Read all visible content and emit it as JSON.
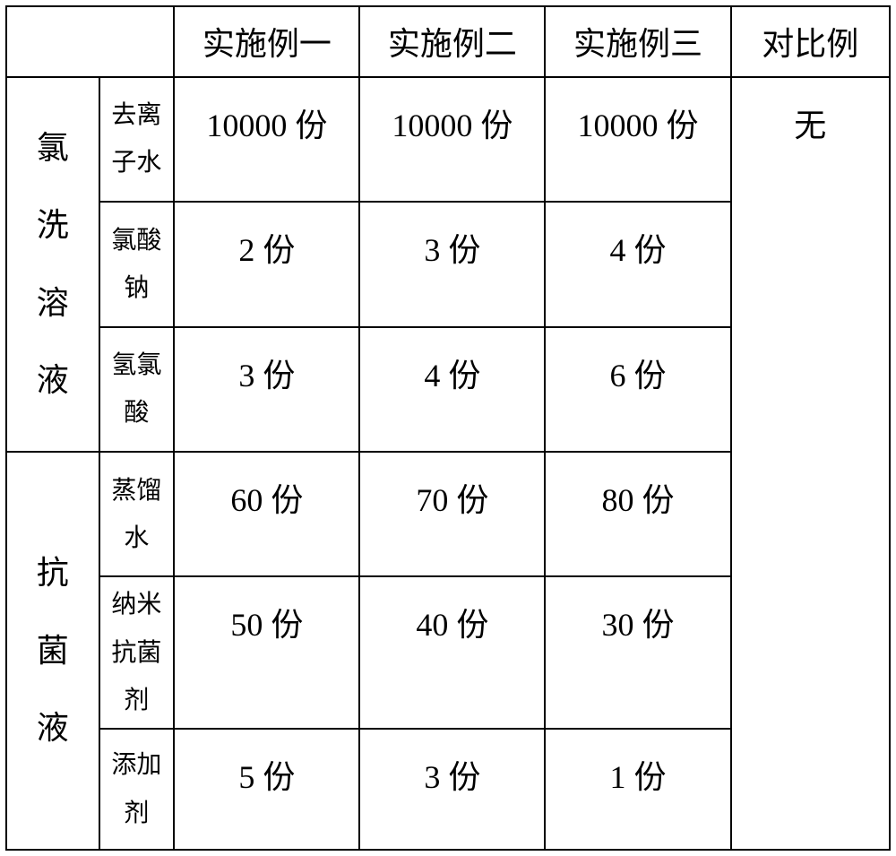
{
  "table": {
    "border_color": "#000000",
    "background_color": "#ffffff",
    "text_color": "#000000",
    "header_fontsize": 36,
    "group_label_fontsize": 36,
    "sub_label_fontsize": 28,
    "data_fontsize": 36,
    "headers": {
      "blank": "",
      "col1": "实施例一",
      "col2": "实施例二",
      "col3": "实施例三",
      "col4": "对比例"
    },
    "groups": [
      {
        "label": "氯洗溶液",
        "rows": [
          {
            "sub": "去离子水",
            "c1": "10000 份",
            "c2": "10000 份",
            "c3": "10000 份"
          },
          {
            "sub": "氯酸钠",
            "c1": "2 份",
            "c2": "3 份",
            "c3": "4 份"
          },
          {
            "sub": "氢氯酸",
            "c1": "3 份",
            "c2": "4 份",
            "c3": "6 份"
          }
        ]
      },
      {
        "label": "抗菌液",
        "rows": [
          {
            "sub": "蒸馏水",
            "c1": "60 份",
            "c2": "70 份",
            "c3": "80 份"
          },
          {
            "sub": "纳米抗菌剂",
            "c1": "50 份",
            "c2": "40 份",
            "c3": "30 份"
          },
          {
            "sub": "添加剂",
            "c1": "5 份",
            "c2": "3 份",
            "c3": "1 份"
          }
        ]
      }
    ],
    "comparison_value": "无",
    "row_heights_pct": [
      8.5,
      15,
      15,
      15,
      15,
      17,
      14.5
    ]
  }
}
